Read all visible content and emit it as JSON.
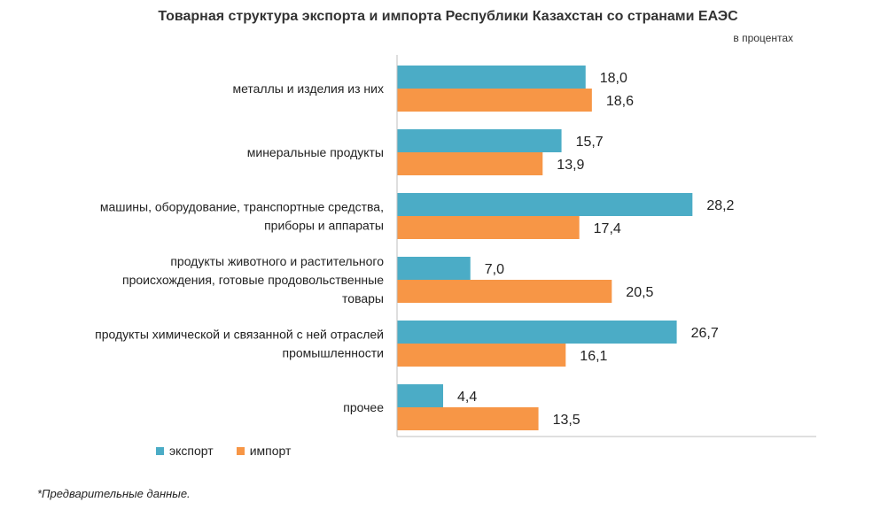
{
  "chart_data": {
    "type": "bar",
    "orientation": "horizontal",
    "title": "Товарная структура экспорта и импорта Республики Казахстан со странами ЕАЭС",
    "subtitle": "в процентах",
    "categories": [
      [
        "металлы и изделия из них"
      ],
      [
        "минеральные продукты"
      ],
      [
        "машины, оборудование, транспортные средства,",
        "приборы и аппараты"
      ],
      [
        "продукты животного и растительного",
        "происхождения, готовые продовольственные",
        "товары"
      ],
      [
        "продукты химической и связанной с ней отраслей",
        "промышленности"
      ],
      [
        "прочее"
      ]
    ],
    "series": [
      {
        "name": "экспорт",
        "color": "#4BACC6",
        "values": [
          18.0,
          15.7,
          28.2,
          7.0,
          26.7,
          4.4
        ],
        "labels": [
          "18,0",
          "15,7",
          "28,2",
          "7,0",
          "26,7",
          "4,4"
        ]
      },
      {
        "name": "импорт",
        "color": "#F79646",
        "values": [
          18.6,
          13.9,
          17.4,
          20.5,
          16.1,
          13.5
        ],
        "labels": [
          "18,6",
          "13,9",
          "17,4",
          "20,5",
          "16,1",
          "13,5"
        ]
      }
    ],
    "xlim": [
      0,
      40
    ],
    "grid": false,
    "legend_position": "bottom-left"
  },
  "footnote": "*Предварительные данные."
}
